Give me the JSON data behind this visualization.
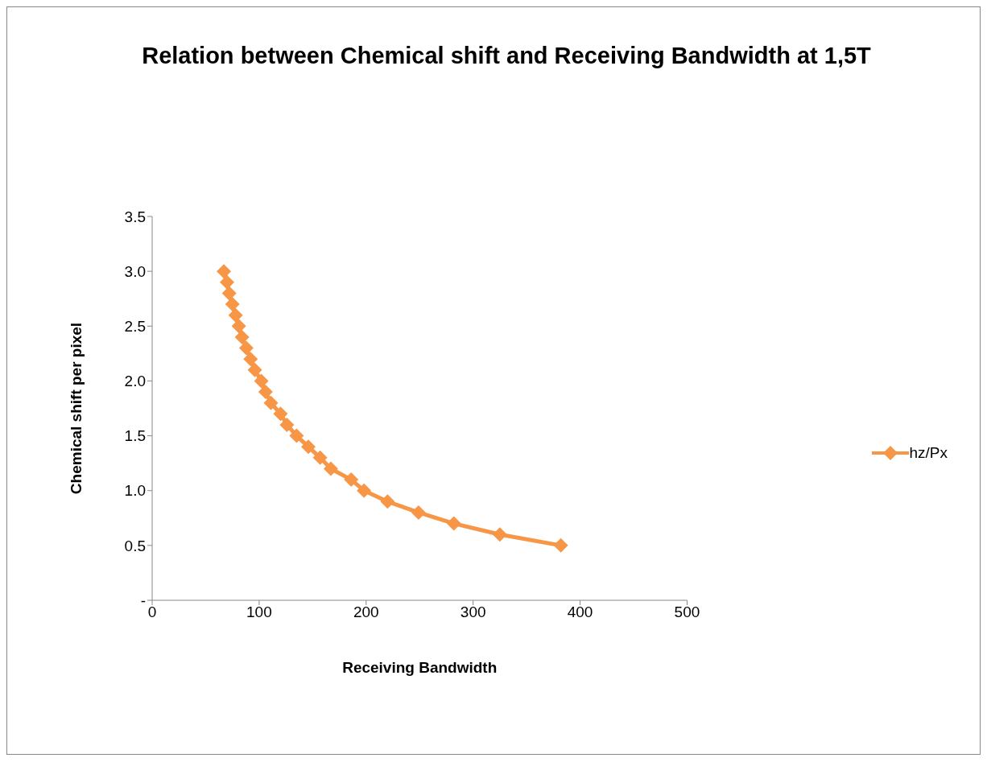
{
  "chart_data": {
    "type": "line",
    "title": "Relation between Chemical shift and Receiving Bandwidth at 1,5T",
    "xlabel": "Receiving Bandwidth",
    "ylabel": "Chemical shift per pixel",
    "series": [
      {
        "name": "hz/Px",
        "color": "#f79646",
        "x": [
          67,
          70,
          72,
          75,
          78,
          81,
          84,
          88,
          92,
          96,
          102,
          106,
          111,
          120,
          126,
          135,
          146,
          157,
          167,
          186,
          198,
          220,
          249,
          282,
          325,
          382
        ],
        "values": [
          3.0,
          2.9,
          2.8,
          2.7,
          2.6,
          2.5,
          2.4,
          2.3,
          2.2,
          2.1,
          2.0,
          1.9,
          1.8,
          1.7,
          1.6,
          1.5,
          1.4,
          1.3,
          1.2,
          1.1,
          1.0,
          0.9,
          0.8,
          0.7,
          0.6,
          0.5
        ]
      }
    ],
    "xlim": [
      0,
      500
    ],
    "xticks": [
      0,
      100,
      200,
      300,
      400,
      500
    ],
    "ylim": [
      0,
      3.5
    ],
    "yticks": [
      {
        "value": 0,
        "label": "-"
      },
      {
        "value": 0.5,
        "label": "0.5"
      },
      {
        "value": 1,
        "label": "1.0"
      },
      {
        "value": 1.5,
        "label": "1.5"
      },
      {
        "value": 2,
        "label": "2.0"
      },
      {
        "value": 2.5,
        "label": "2.5"
      },
      {
        "value": 3,
        "label": "3.0"
      },
      {
        "value": 3.5,
        "label": "3.5"
      }
    ],
    "grid": false,
    "legend": "right",
    "marker": "diamond"
  }
}
